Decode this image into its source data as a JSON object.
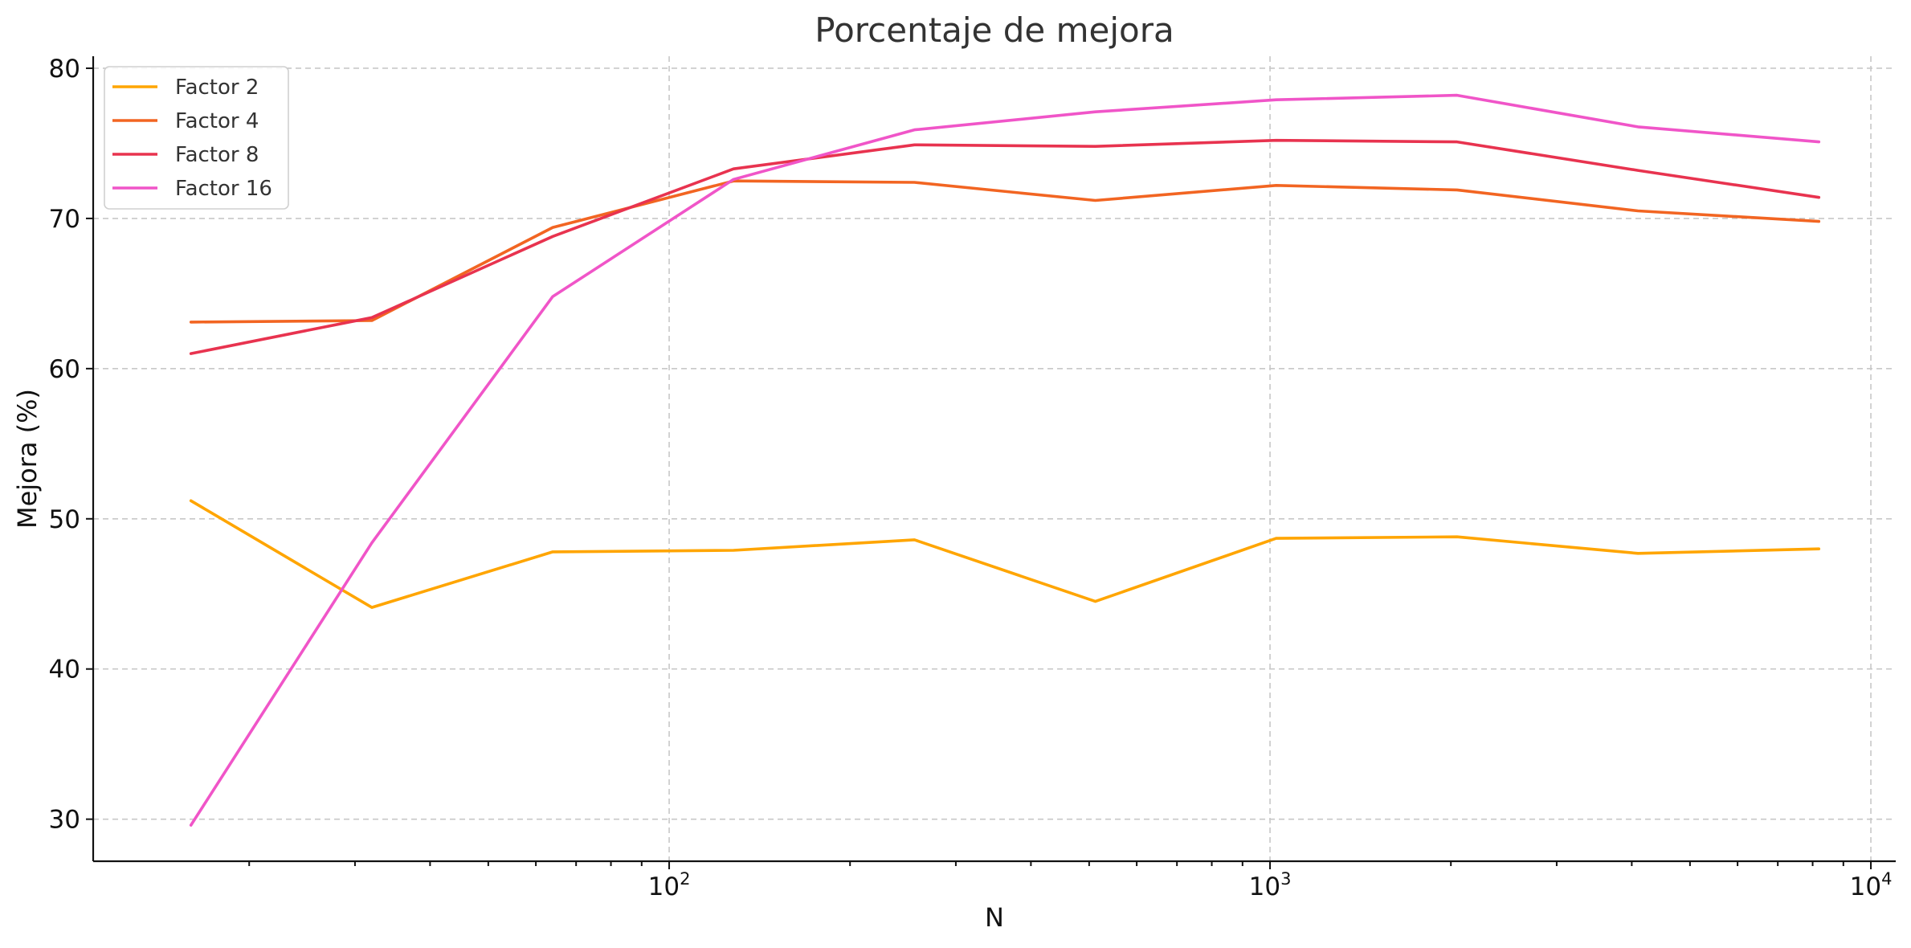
{
  "chart_data": {
    "type": "line",
    "title": "Porcentaje de mejora",
    "xlabel": "N",
    "ylabel": "Mejora (%)",
    "xscale": "log",
    "xlim": [
      11,
      11000
    ],
    "ylim": [
      27.2,
      80.8
    ],
    "yticks": [
      30,
      40,
      50,
      60,
      70,
      80
    ],
    "xticks": [
      {
        "value": 100,
        "base": "10",
        "exp": "2"
      },
      {
        "value": 1000,
        "base": "10",
        "exp": "3"
      },
      {
        "value": 10000,
        "base": "10",
        "exp": "4"
      }
    ],
    "grid": true,
    "legend_position": "top-left",
    "x": [
      16,
      32,
      64,
      128,
      256,
      512,
      1024,
      2048,
      4096,
      8192
    ],
    "series": [
      {
        "name": "Factor 2",
        "color": "#FFA500",
        "values": [
          51.2,
          44.1,
          47.8,
          47.9,
          48.6,
          44.5,
          48.7,
          48.8,
          47.7,
          48.0
        ]
      },
      {
        "name": "Factor 4",
        "color": "#F26522",
        "values": [
          63.1,
          63.2,
          69.4,
          72.5,
          72.4,
          71.2,
          72.2,
          71.9,
          70.5,
          69.8
        ]
      },
      {
        "name": "Factor 8",
        "color": "#E8334F",
        "values": [
          61.0,
          63.4,
          68.8,
          73.3,
          74.9,
          74.8,
          75.2,
          75.1,
          73.2,
          71.4
        ]
      },
      {
        "name": "Factor 16",
        "color": "#F055C8",
        "values": [
          29.6,
          48.4,
          64.8,
          72.6,
          75.9,
          77.1,
          77.9,
          78.2,
          76.1,
          75.1
        ]
      }
    ]
  }
}
